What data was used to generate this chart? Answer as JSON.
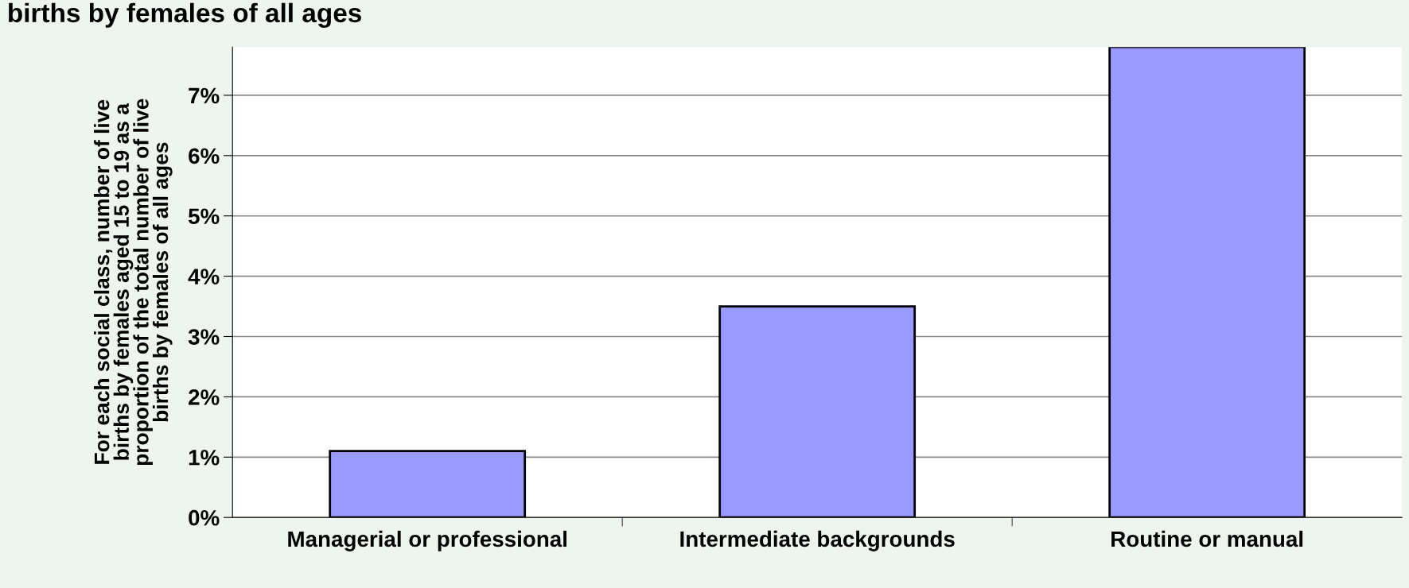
{
  "chart_data": {
    "type": "bar",
    "title": "births by females of all ages",
    "ylabel": "For each social class, number of live\nbirths by females aged 15 to 19 as a\nproportion of the total number of live\nbirths by females of all ages",
    "categories": [
      "Managerial or professional",
      "Intermediate backgrounds",
      "Routine or manual"
    ],
    "values": [
      1.1,
      3.5,
      7.8
    ],
    "color": "#9999ff",
    "ylim": [
      0,
      7.8
    ],
    "yticks": [
      {
        "value": 0,
        "label": "0%"
      },
      {
        "value": 1,
        "label": "1%"
      },
      {
        "value": 2,
        "label": "2%"
      },
      {
        "value": 3,
        "label": "3%"
      },
      {
        "value": 4,
        "label": "4%"
      },
      {
        "value": 5,
        "label": "5%"
      },
      {
        "value": 6,
        "label": "6%"
      },
      {
        "value": 7,
        "label": "7%"
      }
    ],
    "grid": "y"
  }
}
